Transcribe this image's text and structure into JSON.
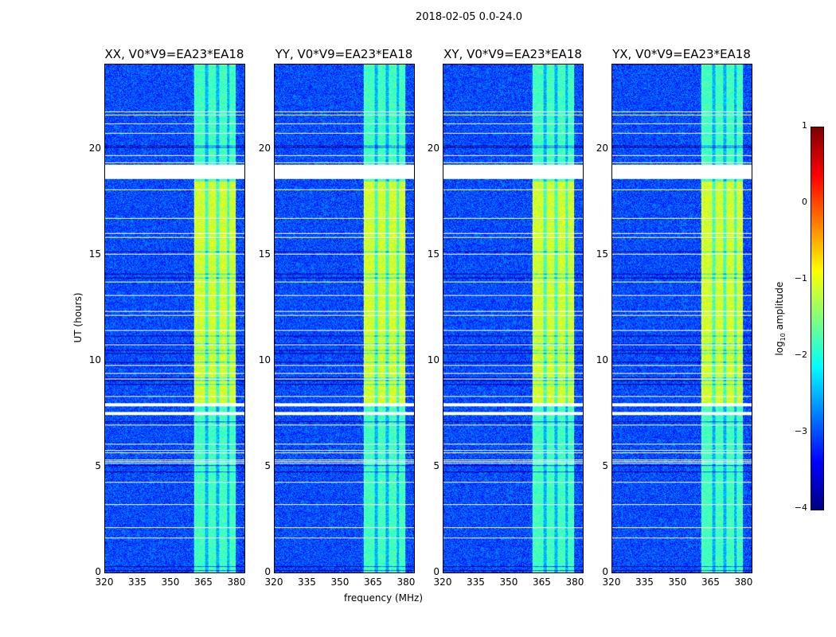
{
  "chart_data": {
    "type": "heatmap",
    "title": "2018-02-05 0.0-24.0",
    "xlabel": "frequency (MHz)",
    "ylabel": "UT (hours)",
    "xlim": [
      320,
      384
    ],
    "ylim": [
      0,
      24
    ],
    "xticks": [
      "320",
      "335",
      "350",
      "365",
      "380"
    ],
    "yticks": [
      "0",
      "5",
      "10",
      "15",
      "20"
    ],
    "panels": [
      {
        "title": "XX, V0*V9=EA23*EA18"
      },
      {
        "title": "YY, V0*V9=EA23*EA18"
      },
      {
        "title": "XY, V0*V9=EA23*EA18"
      },
      {
        "title": "YX, V0*V9=EA23*EA18"
      }
    ],
    "background_log_amplitude": -3.0,
    "band": {
      "freq_range_mhz": [
        360.5,
        380
      ],
      "log_amplitude": -1.8,
      "bright_hours": [
        8,
        18.5
      ],
      "bright_log_amplitude": -1.1,
      "dark_stripes_mhz": [
        366.5,
        371.5,
        376.5
      ]
    },
    "flagged_hours": [
      [
        18.6,
        19.3
      ],
      [
        7.45,
        7.6
      ],
      [
        7.85,
        8.0
      ]
    ],
    "colorbar": {
      "label": "log10 amplitude",
      "label_main": "log",
      "label_sub": "10",
      "label_rest": " amplitude",
      "range": [
        -4,
        1
      ],
      "ticks": [
        "1",
        "0",
        "−1",
        "−2",
        "−3",
        "−4"
      ],
      "colormap": "jet"
    }
  }
}
